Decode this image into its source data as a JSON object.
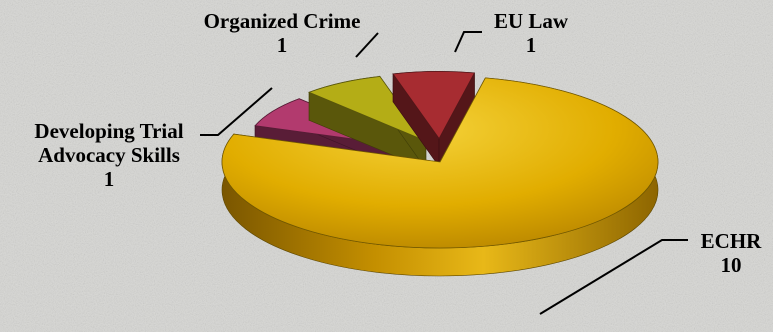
{
  "chart_data": {
    "type": "pie",
    "style": "3d-exploded",
    "title": "",
    "slices": [
      {
        "label": "ECHR",
        "value": 10,
        "color": "#e3b000"
      },
      {
        "label": "Developing Trial Advocacy Skills",
        "value": 1,
        "color": "#b23a6e"
      },
      {
        "label": "Organized Crime",
        "value": 1,
        "color": "#b4ad16"
      },
      {
        "label": "EU Law",
        "value": 1,
        "color": "#a72c31"
      }
    ],
    "label_lines": [
      [
        "ECHR",
        "10"
      ],
      [
        "Developing Trial",
        "Advocacy Skills",
        "1"
      ],
      [
        "Organized Crime",
        "1"
      ],
      [
        "EU Law",
        "1"
      ]
    ],
    "legend": "none"
  }
}
